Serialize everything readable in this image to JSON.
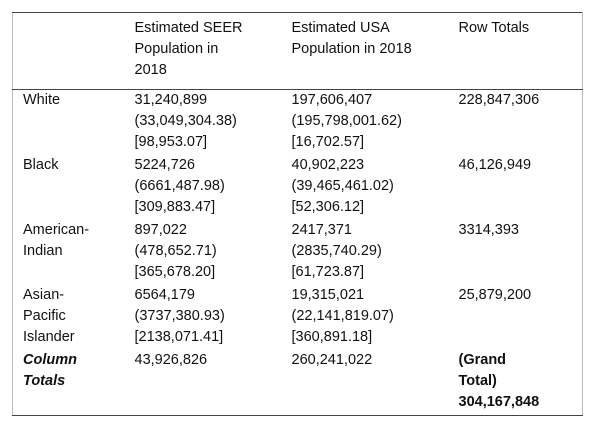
{
  "table": {
    "columns": [
      [
        "Estimated SEER",
        "Population in",
        "2018"
      ],
      [
        "Estimated USA",
        "Population in 2018"
      ],
      [
        "Row Totals"
      ]
    ],
    "rows": [
      {
        "label": [
          "White"
        ],
        "cells": [
          [
            "31,240,899",
            "(33,049,304.38)",
            "[98,953.07]"
          ],
          [
            "197,606,407",
            "(195,798,001.62)",
            "[16,702.57]"
          ],
          [
            "228,847,306"
          ]
        ]
      },
      {
        "label": [
          "Black"
        ],
        "cells": [
          [
            "5224,726",
            "(6661,487.98)",
            "[309,883.47]"
          ],
          [
            "40,902,223",
            "(39,465,461.02)",
            "[52,306.12]"
          ],
          [
            "46,126,949"
          ]
        ]
      },
      {
        "label": [
          "American-",
          "Indian"
        ],
        "cells": [
          [
            "897,022",
            "(478,652.71)",
            "[365,678.20]"
          ],
          [
            "2417,371",
            "(2835,740.29)",
            "[61,723.87]"
          ],
          [
            "3314,393"
          ]
        ]
      },
      {
        "label": [
          "Asian-",
          "Pacific",
          "Islander"
        ],
        "cells": [
          [
            "6564,179",
            "(3737,380.93)",
            "[2138,071.41]"
          ],
          [
            "19,315,021",
            "(22,141,819.07)",
            "[360,891.18]"
          ],
          [
            "25,879,200"
          ]
        ]
      }
    ],
    "totals": {
      "label": [
        "Column",
        "Totals"
      ],
      "cells": [
        [
          "43,926,826"
        ],
        [
          "260,241,022"
        ],
        [
          "(Grand",
          "Total)",
          "304,167,848"
        ]
      ]
    }
  }
}
